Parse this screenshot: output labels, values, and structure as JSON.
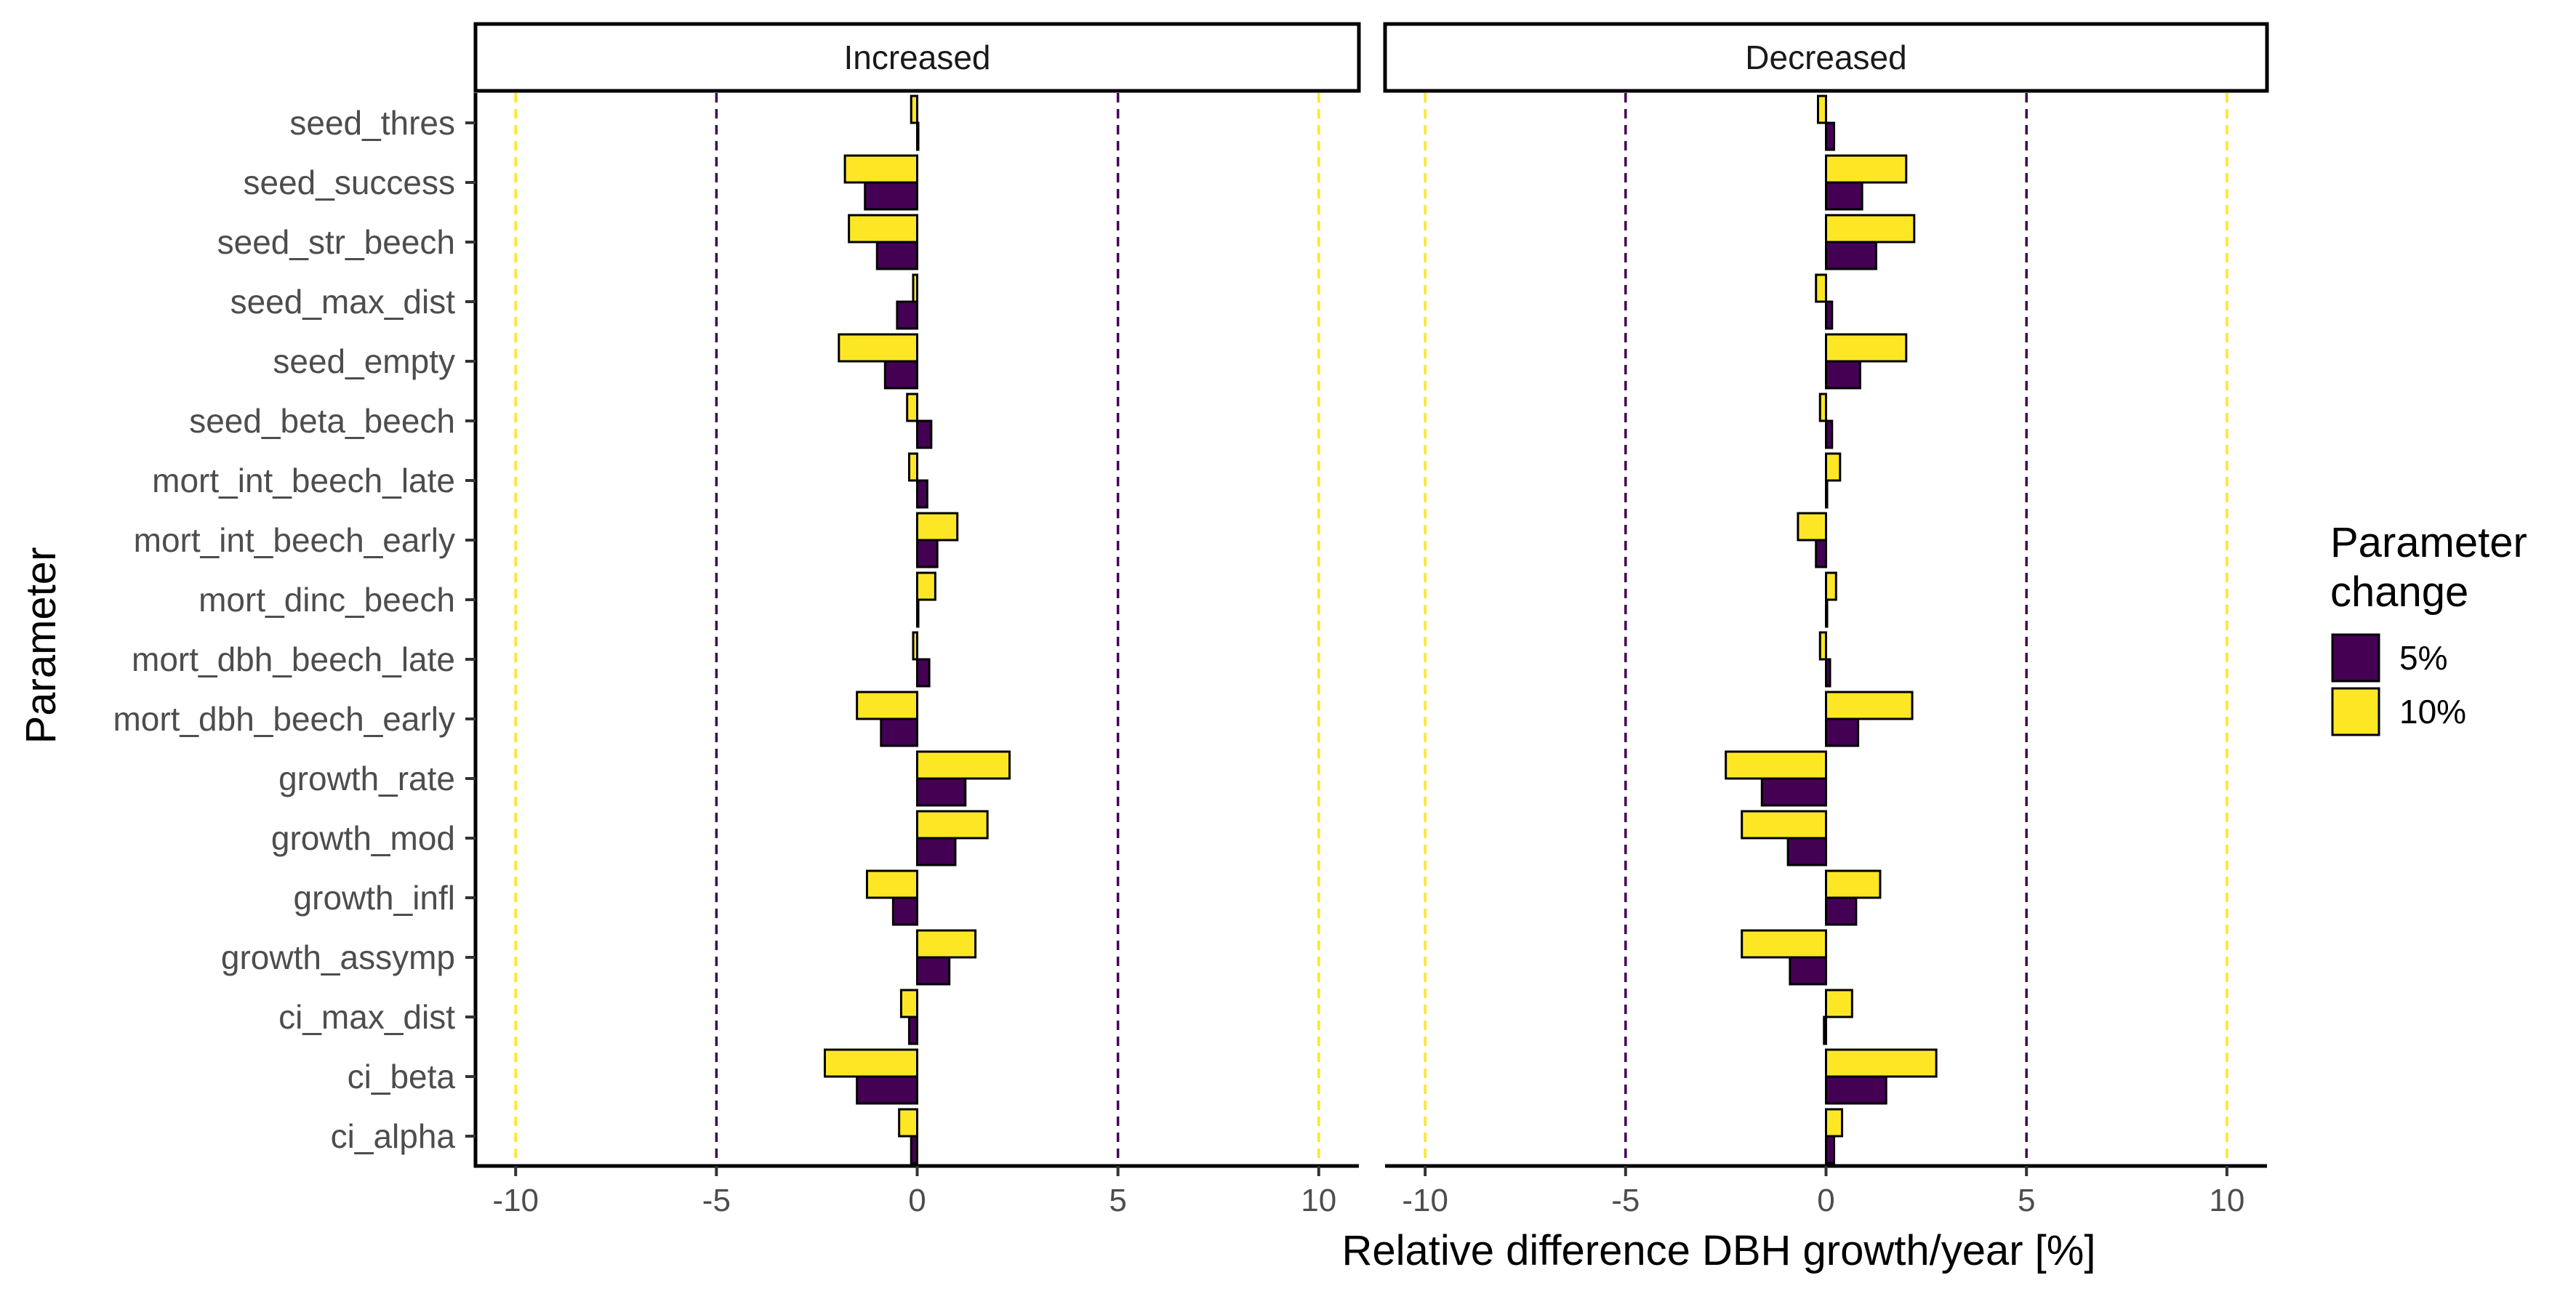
{
  "chart_data": {
    "type": "bar",
    "orientation": "horizontal",
    "xlabel": "Relative difference DBH growth/year [%]",
    "ylabel": "Parameter",
    "xlim": [
      -11,
      11
    ],
    "x_ticks": [
      -10,
      -5,
      0,
      5,
      10
    ],
    "reference_lines": [
      {
        "x": -10,
        "color": "#FDE725"
      },
      {
        "x": -5,
        "color": "#440154"
      },
      {
        "x": 5,
        "color": "#440154"
      },
      {
        "x": 10,
        "color": "#FDE725"
      }
    ],
    "grid": false,
    "legend": {
      "title_lines": [
        "Parameter",
        "change"
      ],
      "placement": "right",
      "entries": [
        {
          "label": "5%",
          "color": "#440154"
        },
        {
          "label": "10%",
          "color": "#FDE725"
        }
      ]
    },
    "categories": [
      "seed_thres",
      "seed_success",
      "seed_str_beech",
      "seed_max_dist",
      "seed_empty",
      "seed_beta_beech",
      "mort_int_beech_late",
      "mort_int_beech_early",
      "mort_dinc_beech",
      "mort_dbh_beech_late",
      "mort_dbh_beech_early",
      "growth_rate",
      "growth_mod",
      "growth_infl",
      "growth_assymp",
      "ci_max_dist",
      "ci_beta",
      "ci_alpha"
    ],
    "panels": [
      {
        "title": "Increased",
        "series": [
          {
            "name": "5%",
            "values": [
              0.0,
              -1.3,
              -1.0,
              -0.5,
              -0.8,
              0.35,
              0.25,
              0.5,
              0.0,
              0.3,
              -0.9,
              1.2,
              0.95,
              -0.6,
              0.8,
              -0.2,
              -1.5,
              -0.15
            ]
          },
          {
            "name": "10%",
            "values": [
              -0.15,
              -1.8,
              -1.7,
              -0.1,
              -1.95,
              -0.25,
              -0.2,
              1.0,
              0.45,
              -0.1,
              -1.5,
              2.3,
              1.75,
              -1.25,
              1.45,
              -0.4,
              -2.3,
              -0.45
            ]
          }
        ]
      },
      {
        "title": "Decreased",
        "series": [
          {
            "name": "5%",
            "values": [
              0.2,
              0.9,
              1.25,
              0.15,
              0.85,
              0.15,
              0.0,
              -0.25,
              0.0,
              0.1,
              0.8,
              -1.6,
              -0.95,
              0.75,
              -0.9,
              -0.05,
              1.5,
              0.2
            ]
          },
          {
            "name": "10%",
            "values": [
              -0.2,
              2.0,
              2.2,
              -0.25,
              2.0,
              -0.15,
              0.35,
              -0.7,
              0.25,
              -0.15,
              2.15,
              -2.5,
              -2.1,
              1.35,
              -2.1,
              0.65,
              2.75,
              0.4
            ]
          }
        ]
      }
    ]
  }
}
